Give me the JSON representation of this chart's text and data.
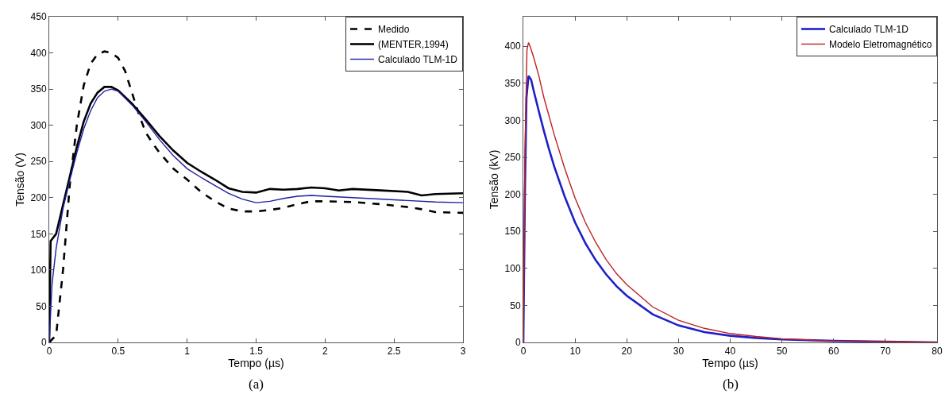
{
  "chart_data": [
    {
      "type": "line",
      "xlabel": "Tempo (µs)",
      "ylabel": "Tensão (V)",
      "annotations": [
        "(a)"
      ],
      "xlim": [
        0,
        3
      ],
      "xticks": [
        0,
        0.5,
        1,
        1.5,
        2,
        2.5,
        3
      ],
      "ylim": [
        0,
        450
      ],
      "yticks": [
        0,
        50,
        100,
        150,
        200,
        250,
        300,
        350,
        400,
        450
      ],
      "grid": false,
      "legend": "top right",
      "series": [
        {
          "name": "Medido",
          "color": "#000000",
          "line_style": "dashed",
          "x": [
            0,
            0.05,
            0.1,
            0.15,
            0.2,
            0.25,
            0.3,
            0.35,
            0.4,
            0.45,
            0.5,
            0.55,
            0.6,
            0.65,
            0.7,
            0.75,
            0.8,
            0.9,
            1.0,
            1.1,
            1.2,
            1.3,
            1.4,
            1.5,
            1.6,
            1.7,
            1.8,
            1.9,
            2.0,
            2.2,
            2.4,
            2.6,
            2.7,
            2.8,
            3.0
          ],
          "values": [
            0,
            10,
            100,
            220,
            300,
            355,
            385,
            398,
            402,
            400,
            393,
            375,
            345,
            315,
            290,
            275,
            262,
            240,
            225,
            208,
            195,
            185,
            181,
            181,
            183,
            186,
            191,
            195,
            195,
            194,
            191,
            187,
            184,
            180,
            179
          ]
        },
        {
          "name": "(MENTER,1994)",
          "color": "#000000",
          "line_style": "solid",
          "x": [
            0,
            0.01,
            0.05,
            0.1,
            0.15,
            0.2,
            0.25,
            0.3,
            0.35,
            0.4,
            0.45,
            0.5,
            0.6,
            0.7,
            0.8,
            0.9,
            1.0,
            1.1,
            1.2,
            1.3,
            1.4,
            1.5,
            1.6,
            1.7,
            1.8,
            1.9,
            2.0,
            2.1,
            2.2,
            2.4,
            2.6,
            2.7,
            2.8,
            3.0
          ],
          "values": [
            0,
            140,
            150,
            190,
            230,
            270,
            305,
            330,
            345,
            353,
            353,
            348,
            330,
            308,
            285,
            265,
            248,
            236,
            225,
            213,
            208,
            207,
            212,
            211,
            212,
            214,
            213,
            210,
            212,
            210,
            208,
            203,
            205,
            206
          ]
        },
        {
          "name": "Calculado TLM-1D",
          "color": "#1f1fa0",
          "line_style": "solid",
          "x": [
            0,
            0.02,
            0.05,
            0.1,
            0.15,
            0.2,
            0.25,
            0.3,
            0.35,
            0.4,
            0.45,
            0.5,
            0.6,
            0.7,
            0.8,
            0.9,
            1.0,
            1.1,
            1.2,
            1.3,
            1.4,
            1.5,
            1.6,
            1.7,
            1.8,
            1.9,
            2.0,
            2.2,
            2.5,
            2.8,
            3.0
          ],
          "values": [
            0,
            80,
            130,
            185,
            225,
            262,
            295,
            320,
            338,
            347,
            350,
            347,
            328,
            305,
            280,
            258,
            240,
            228,
            217,
            206,
            198,
            193,
            195,
            199,
            202,
            203,
            202,
            200,
            197,
            194,
            193
          ]
        }
      ]
    },
    {
      "type": "line",
      "xlabel": "Tempo (µs)",
      "ylabel": "Tensão (kV)",
      "annotations": [
        "(b)"
      ],
      "xlim": [
        0,
        80
      ],
      "xticks": [
        0,
        10,
        20,
        30,
        40,
        50,
        60,
        70,
        80
      ],
      "ylim": [
        0,
        440
      ],
      "yticks": [
        0,
        50,
        100,
        150,
        200,
        250,
        300,
        350,
        400
      ],
      "grid": false,
      "legend": "top right",
      "series": [
        {
          "name": "Calculado TLM-1D",
          "color": "#1f1fc8",
          "line_style": "solid",
          "x": [
            0,
            0.3,
            0.6,
            1,
            1.5,
            2,
            3,
            4,
            5,
            6,
            8,
            10,
            12,
            14,
            16,
            18,
            20,
            25,
            30,
            35,
            40,
            45,
            50,
            60,
            70,
            80
          ],
          "values": [
            0,
            200,
            330,
            360,
            355,
            340,
            312,
            285,
            260,
            237,
            197,
            162,
            134,
            111,
            92,
            76,
            63,
            38,
            23,
            14,
            9,
            6,
            4,
            2,
            1,
            0
          ]
        },
        {
          "name": "Modelo Eletromagnético",
          "color": "#c02020",
          "line_style": "solid",
          "x": [
            0,
            0.3,
            0.7,
            1,
            1.3,
            2,
            3,
            4,
            5,
            6,
            8,
            10,
            12,
            14,
            16,
            18,
            20,
            25,
            30,
            35,
            40,
            45,
            50,
            60,
            70,
            80
          ],
          "values": [
            0,
            250,
            395,
            405,
            400,
            385,
            360,
            330,
            305,
            280,
            235,
            195,
            162,
            135,
            112,
            93,
            78,
            48,
            30,
            19,
            12,
            8,
            5,
            2,
            1,
            0
          ]
        }
      ]
    }
  ]
}
